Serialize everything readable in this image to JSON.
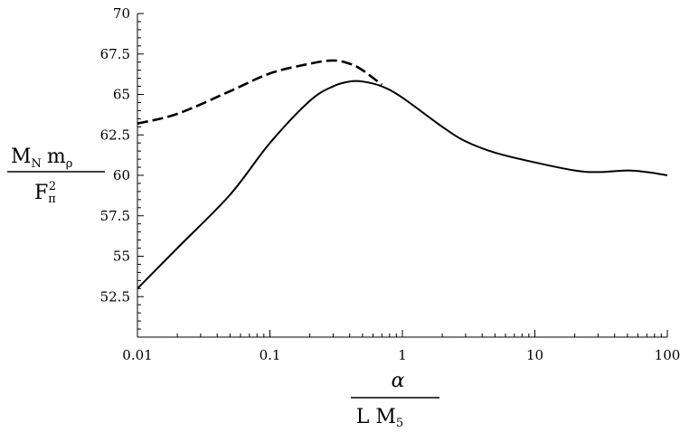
{
  "chart_data": {
    "type": "line",
    "title": "",
    "x_scale": "log",
    "xlim": [
      0.01,
      100
    ],
    "ylim": [
      50,
      70
    ],
    "x_ticks": [
      {
        "value": 0.01,
        "label": "0.01"
      },
      {
        "value": 0.1,
        "label": "0.1"
      },
      {
        "value": 1,
        "label": "1"
      },
      {
        "value": 10,
        "label": "10"
      },
      {
        "value": 100,
        "label": "100"
      }
    ],
    "y_ticks": [
      {
        "value": 52.5,
        "label": "52.5"
      },
      {
        "value": 55,
        "label": "55"
      },
      {
        "value": 57.5,
        "label": "57.5"
      },
      {
        "value": 60,
        "label": "60"
      },
      {
        "value": 62.5,
        "label": "62.5"
      },
      {
        "value": 65,
        "label": "65"
      },
      {
        "value": 67.5,
        "label": "67.5"
      },
      {
        "value": 70,
        "label": "70"
      }
    ],
    "xlabel": {
      "numerator": "α",
      "denominator_main": "L M",
      "denominator_sub": "5"
    },
    "ylabel": {
      "numerator_1": "M",
      "numerator_1_sub": "N",
      "numerator_2": "m",
      "numerator_2_sub": "ρ",
      "denominator": "F",
      "denominator_sub": "π",
      "denominator_sup": "2"
    },
    "grid": false,
    "legend": "none",
    "series": [
      {
        "style": "solid",
        "color": "#000000",
        "x": [
          0.01,
          0.02,
          0.05,
          0.1,
          0.2,
          0.3,
          0.4,
          0.5,
          0.7,
          1,
          2,
          3,
          5,
          10,
          20,
          30,
          50,
          70,
          100
        ],
        "y": [
          53.0,
          55.5,
          58.8,
          62.0,
          64.6,
          65.5,
          65.8,
          65.8,
          65.5,
          64.8,
          63.0,
          62.1,
          61.4,
          60.8,
          60.3,
          60.2,
          60.3,
          60.2,
          60.0
        ]
      },
      {
        "style": "dashed",
        "color": "#000000",
        "x": [
          0.01,
          0.02,
          0.05,
          0.1,
          0.2,
          0.3,
          0.4,
          0.5,
          0.7
        ],
        "y": [
          63.2,
          63.8,
          65.2,
          66.3,
          66.9,
          67.1,
          66.9,
          66.5,
          65.6
        ]
      }
    ]
  }
}
